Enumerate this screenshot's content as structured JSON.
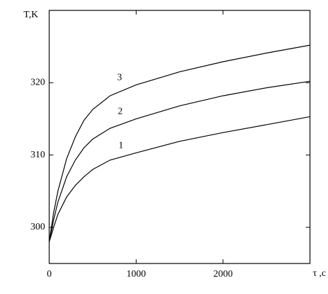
{
  "chart_data": {
    "type": "line",
    "ylabel": "T,K",
    "xlabel": "τ ,c",
    "x": [
      0,
      50,
      100,
      200,
      300,
      400,
      500,
      700,
      1000,
      1500,
      2000,
      2500,
      3000
    ],
    "series": [
      {
        "name": "1",
        "color": "#000000",
        "values": [
          298,
          300,
          301.8,
          304.2,
          305.8,
          307,
          308,
          309.3,
          310.3,
          311.9,
          313.1,
          314.2,
          315.3
        ]
      },
      {
        "name": "2",
        "color": "#000000",
        "values": [
          298,
          301,
          303.5,
          307,
          309.3,
          311,
          312.2,
          313.7,
          315,
          316.8,
          318.2,
          319.3,
          320.2
        ]
      },
      {
        "name": "3",
        "color": "#000000",
        "values": [
          298,
          302,
          305,
          309.5,
          312.5,
          314.8,
          316.3,
          318.2,
          319.7,
          321.5,
          322.9,
          324.1,
          325.2
        ]
      }
    ],
    "xlim": [
      0,
      3000
    ],
    "xticks": [
      0,
      1000,
      2000
    ],
    "ylim": [
      295,
      330
    ],
    "yticks": [
      300,
      310,
      320
    ],
    "grid": false
  }
}
